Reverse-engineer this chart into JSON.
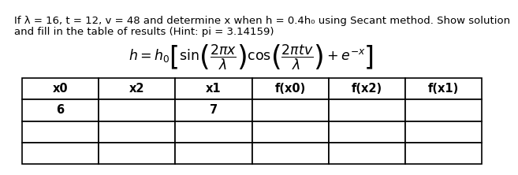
{
  "title_line1": "If λ = 16, t = 12, v = 48 and determine x when h = 0.4h₀ using Secant method. Show solution",
  "title_line2": "and fill in the table of results (Hint: pi = 3.14159)",
  "col_headers": [
    "x0",
    "x2",
    "x1",
    "f(x0)",
    "f(x2)",
    "f(x1)"
  ],
  "row1": [
    "6",
    "",
    "7",
    "",
    "",
    ""
  ],
  "row2": [
    "",
    "",
    "",
    "",
    "",
    ""
  ],
  "row3": [
    "",
    "",
    "",
    "",
    "",
    ""
  ],
  "bg_color": "#ffffff",
  "text_color": "#000000",
  "title_fontsize": 9.5,
  "formula_fontsize": 12.5,
  "table_header_fontsize": 10.5,
  "table_data_fontsize": 10.5
}
